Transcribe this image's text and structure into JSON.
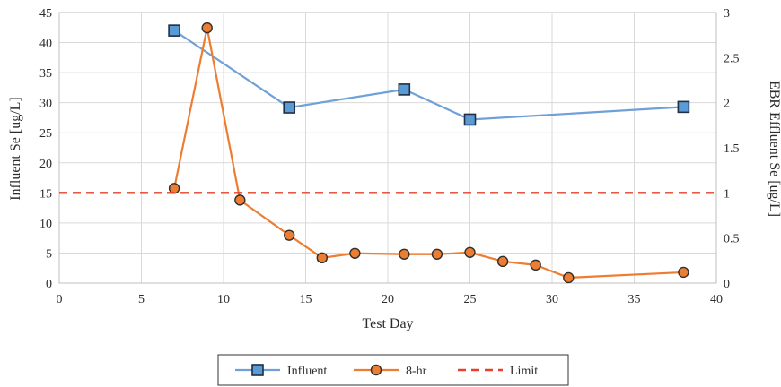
{
  "chart_data": {
    "type": "line",
    "xlabel": "Test Day",
    "ylabel_left": "Influent Se [ug/L]",
    "ylabel_right": "EBR Effluent Se [ug/L]",
    "xlim": [
      0,
      40
    ],
    "ylim_left": [
      0,
      45
    ],
    "ylim_right": [
      0,
      3
    ],
    "x_ticks": [
      "0",
      "5",
      "10",
      "15",
      "20",
      "25",
      "30",
      "35",
      "40"
    ],
    "y_left_ticks": [
      "0",
      "5",
      "10",
      "15",
      "20",
      "25",
      "30",
      "35",
      "40",
      "45"
    ],
    "y_right_ticks": [
      "0",
      "0.5",
      "1",
      "1.5",
      "2",
      "2.5",
      "3"
    ],
    "grid": true,
    "legend_position": "bottom",
    "series": [
      {
        "name": "Influent",
        "axis": "left",
        "color": "#6fa0d8",
        "marker": "square",
        "marker_fill": "#5b9bd5",
        "points": [
          [
            7,
            42
          ],
          [
            14,
            29.2
          ],
          [
            21,
            32.2
          ],
          [
            25,
            27.2
          ],
          [
            38,
            29.3
          ]
        ]
      },
      {
        "name": "8-hr",
        "axis": "right",
        "color": "#ed7d31",
        "marker": "circle",
        "marker_fill": "#ed7d31",
        "points": [
          [
            7,
            1.05
          ],
          [
            9,
            2.83
          ],
          [
            11,
            0.92
          ],
          [
            14,
            0.53
          ],
          [
            16,
            0.28
          ],
          [
            18,
            0.33
          ],
          [
            21,
            0.32
          ],
          [
            23,
            0.32
          ],
          [
            25,
            0.34
          ],
          [
            27,
            0.24
          ],
          [
            29,
            0.2
          ],
          [
            31,
            0.06
          ],
          [
            38,
            0.12
          ]
        ]
      },
      {
        "name": "Limit",
        "axis": "right",
        "color": "#e8412a",
        "style": "dashed",
        "y": 1
      }
    ]
  }
}
